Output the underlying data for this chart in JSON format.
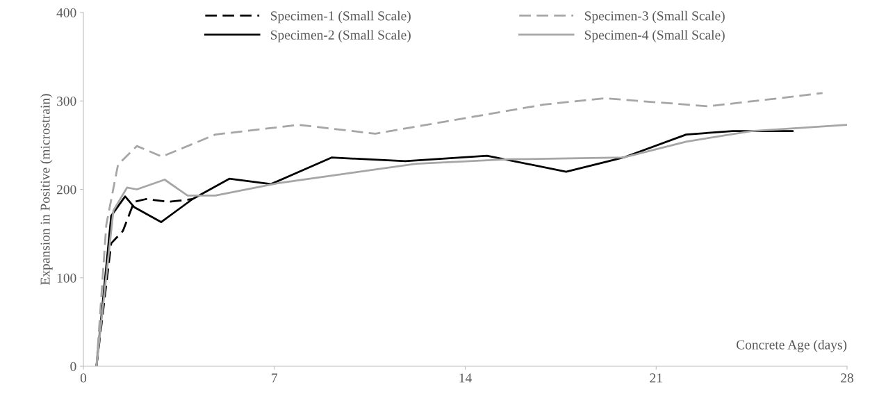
{
  "chart_data": {
    "type": "line",
    "xlabel": "Concrete Age (days)",
    "ylabel": "Expansion in Positive (microstrain)",
    "xlim": [
      0,
      28
    ],
    "xticks": [
      0,
      7,
      14,
      21,
      28
    ],
    "ylim": [
      0,
      400
    ],
    "yticks": [
      0,
      100,
      200,
      300,
      400
    ],
    "grid": false,
    "legend": "top",
    "marker": "none",
    "series": [
      {
        "name": "Specimen-1 (Small Scale)",
        "color": "#000000",
        "line_style": "dashed",
        "x": [
          0.48,
          1.02,
          1.45,
          1.86,
          2.29,
          3.13,
          4.0
        ],
        "values": [
          0,
          139,
          153,
          186,
          189,
          186,
          189
        ]
      },
      {
        "name": "Specimen-2 (Small Scale)",
        "color": "#000000",
        "line_style": "solid",
        "x": [
          0.48,
          1.02,
          1.53,
          1.86,
          2.85,
          4.0,
          5.35,
          6.88,
          9.1,
          11.8,
          14.8,
          17.7,
          19.8,
          22.1,
          23.8,
          26.0
        ],
        "values": [
          0,
          170,
          192,
          180,
          163,
          189,
          212,
          206,
          236,
          232,
          238,
          220,
          236,
          262,
          266,
          266
        ]
      },
      {
        "name": "Specimen-3 (Small Scale)",
        "color": "#a6a6a6",
        "line_style": "dashed",
        "x": [
          0.48,
          0.84,
          1.27,
          1.96,
          2.88,
          4.84,
          7.9,
          10.7,
          16.9,
          19.1,
          22.9,
          25.5,
          27.1
        ],
        "values": [
          0,
          160,
          228,
          249,
          237,
          262,
          273,
          263,
          296,
          303,
          294,
          303,
          309
        ]
      },
      {
        "name": "Specimen-4 (Small Scale)",
        "color": "#a6a6a6",
        "line_style": "solid",
        "x": [
          0.48,
          1.1,
          1.6,
          1.96,
          2.98,
          3.82,
          4.84,
          7.13,
          12.2,
          15.6,
          17.8,
          19.8,
          22.1,
          24.5,
          28.0
        ],
        "values": [
          0,
          176,
          202,
          200,
          211,
          193,
          193,
          207,
          229,
          234,
          235,
          236,
          254,
          266,
          273
        ]
      }
    ]
  }
}
